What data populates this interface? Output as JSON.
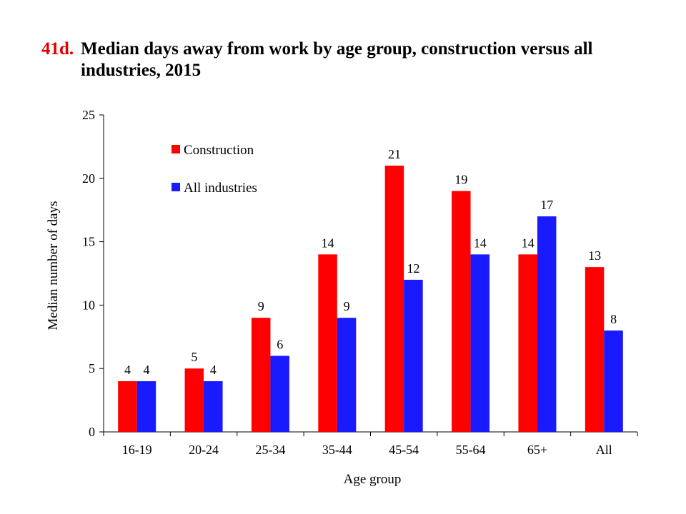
{
  "figure": {
    "number": "41d.",
    "title": "Median days away from work by age group, construction versus all industries, 2015"
  },
  "colors": {
    "construction": "#ff0000",
    "all_industries": "#1a1aff",
    "figure_number": "#e00000"
  },
  "chart_data": {
    "type": "bar",
    "title": "Median days away from work by age group, construction versus all industries, 2015",
    "xlabel": "Age group",
    "ylabel": "Median number of days",
    "categories": [
      "16-19",
      "20-24",
      "25-34",
      "35-44",
      "45-54",
      "55-64",
      "65+",
      "All"
    ],
    "series": [
      {
        "name": "Construction",
        "values": [
          4,
          5,
          9,
          14,
          21,
          19,
          14,
          13
        ]
      },
      {
        "name": "All industries",
        "values": [
          4,
          4,
          6,
          9,
          12,
          14,
          17,
          8
        ]
      }
    ],
    "ylim": [
      0,
      25
    ],
    "yticks": [
      0,
      5,
      10,
      15,
      20,
      25
    ],
    "grid": false,
    "legend_position": "top-left",
    "data_labels": true
  }
}
